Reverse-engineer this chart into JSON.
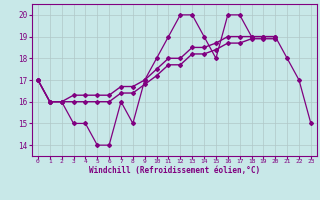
{
  "x_jagged": [
    0,
    1,
    2,
    3,
    4,
    5,
    6,
    7,
    8,
    9,
    10,
    11,
    12,
    13,
    14,
    15,
    16,
    17,
    18,
    19,
    20,
    21,
    22,
    23
  ],
  "y_jagged": [
    17,
    16,
    16,
    15,
    15,
    14,
    14,
    16,
    15,
    17,
    18,
    19,
    20,
    20,
    19,
    18,
    20,
    20,
    19,
    19,
    19,
    18,
    17,
    15
  ],
  "x_smooth1": [
    0,
    1,
    2,
    3,
    4,
    5,
    6,
    7,
    8,
    9,
    10,
    11,
    12,
    13,
    14,
    15,
    16,
    17,
    18,
    19,
    20
  ],
  "y_smooth1": [
    17,
    16,
    16,
    16.3,
    16.3,
    16.3,
    16.3,
    16.7,
    16.7,
    17.0,
    17.5,
    18.0,
    18.0,
    18.5,
    18.5,
    18.7,
    19.0,
    19.0,
    19.0,
    19.0,
    19.0
  ],
  "x_smooth2": [
    0,
    1,
    2,
    3,
    4,
    5,
    6,
    7,
    8,
    9,
    10,
    11,
    12,
    13,
    14,
    15,
    16,
    17,
    18,
    19,
    20
  ],
  "y_smooth2": [
    17,
    16,
    16,
    16.0,
    16.0,
    16.0,
    16.0,
    16.4,
    16.4,
    16.8,
    17.2,
    17.7,
    17.7,
    18.2,
    18.2,
    18.4,
    18.7,
    18.7,
    18.9,
    18.9,
    18.9
  ],
  "ylim": [
    13.5,
    20.5
  ],
  "xlim": [
    -0.5,
    23.5
  ],
  "yticks": [
    14,
    15,
    16,
    17,
    18,
    19,
    20
  ],
  "xticks": [
    0,
    1,
    2,
    3,
    4,
    5,
    6,
    7,
    8,
    9,
    10,
    11,
    12,
    13,
    14,
    15,
    16,
    17,
    18,
    19,
    20,
    21,
    22,
    23
  ],
  "xlabel": "Windchill (Refroidissement éolien,°C)",
  "line_color": "#800080",
  "bg_color": "#c8e8e8",
  "grid_color": "#b0c8c8"
}
